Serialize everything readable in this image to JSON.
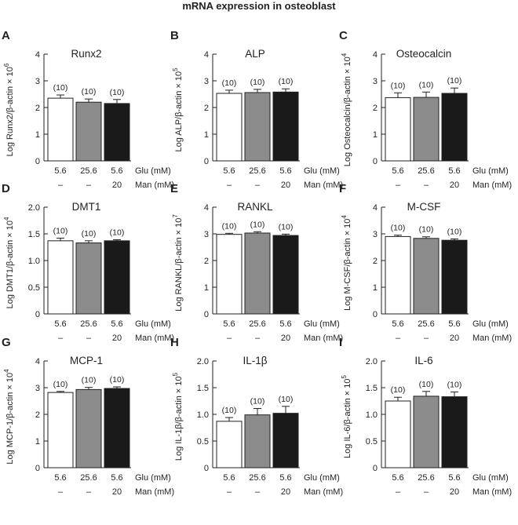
{
  "figure_title": "mRNA expression in osteoblast",
  "conditions": {
    "glu_values": [
      "5.6",
      "25.6",
      "5.6"
    ],
    "glu_unit": "Glu (mM)",
    "man_values": [
      "–",
      "–",
      "20"
    ],
    "man_unit": "Man (mM)"
  },
  "colors": {
    "bar_fills": [
      "#ffffff",
      "#8c8c8c",
      "#1a1a1a"
    ],
    "stroke": "#231f20"
  },
  "chart_data": [
    {
      "type": "bar",
      "letter": "A",
      "title": "Runx2",
      "ylabel": "Log Runx2/β-actin × 10",
      "ylabel_exp": "6",
      "ylim": [
        0,
        4
      ],
      "yticks": [
        "0",
        "1",
        "2",
        "3",
        "4"
      ],
      "categories": [
        "5.6 Glu",
        "25.6 Glu",
        "5.6 Glu + 20 Man"
      ],
      "values": [
        2.35,
        2.2,
        2.15
      ],
      "errors": [
        0.12,
        0.12,
        0.15
      ],
      "n": [
        "(10)",
        "(10)",
        "(10)"
      ]
    },
    {
      "type": "bar",
      "letter": "B",
      "title": "ALP",
      "ylabel": "Log ALP/β-actin × 10",
      "ylabel_exp": "5",
      "ylim": [
        0,
        4
      ],
      "yticks": [
        "0",
        "1",
        "2",
        "3",
        "4"
      ],
      "categories": [
        "5.6 Glu",
        "25.6 Glu",
        "5.6 Glu + 20 Man"
      ],
      "values": [
        2.53,
        2.56,
        2.58
      ],
      "errors": [
        0.12,
        0.12,
        0.12
      ],
      "n": [
        "(10)",
        "(10)",
        "(10)"
      ]
    },
    {
      "type": "bar",
      "letter": "C",
      "title": "Osteocalcin",
      "ylabel": "Log Osteocalcin/β-actin × 10",
      "ylabel_exp": "4",
      "ylim": [
        0,
        4
      ],
      "yticks": [
        "0",
        "1",
        "2",
        "3",
        "4"
      ],
      "categories": [
        "5.6 Glu",
        "25.6 Glu",
        "5.6 Glu + 20 Man"
      ],
      "values": [
        2.37,
        2.38,
        2.53
      ],
      "errors": [
        0.18,
        0.2,
        0.2
      ],
      "n": [
        "(10)",
        "(10)",
        "(10)"
      ]
    },
    {
      "type": "bar",
      "letter": "D",
      "title": "DMT1",
      "ylabel": "Log DMT1/β-actin × 10",
      "ylabel_exp": "4",
      "ylim": [
        0,
        2
      ],
      "yticks": [
        "0",
        "0.5",
        "1.0",
        "1.5",
        "2.0"
      ],
      "categories": [
        "5.6 Glu",
        "25.6 Glu",
        "5.6 Glu + 20 Man"
      ],
      "values": [
        1.37,
        1.33,
        1.37
      ],
      "errors": [
        0.05,
        0.04,
        0.02
      ],
      "n": [
        "(10)",
        "(10)",
        "(10)"
      ]
    },
    {
      "type": "bar",
      "letter": "E",
      "title": "RANKL",
      "ylabel": "Log RANKL/β-actin × 10",
      "ylabel_exp": "7",
      "ylim": [
        0,
        4
      ],
      "yticks": [
        "0",
        "1",
        "2",
        "3",
        "4"
      ],
      "categories": [
        "5.6 Glu",
        "25.6 Glu",
        "5.6 Glu + 20 Man"
      ],
      "values": [
        2.98,
        3.03,
        2.94
      ],
      "errors": [
        0.04,
        0.05,
        0.05
      ],
      "n": [
        "(10)",
        "(10)",
        "(10)"
      ]
    },
    {
      "type": "bar",
      "letter": "F",
      "title": "M-CSF",
      "ylabel": "Log M-CSF/β-actin × 10",
      "ylabel_exp": "4",
      "ylim": [
        0,
        4
      ],
      "yticks": [
        "0",
        "1",
        "2",
        "3",
        "4"
      ],
      "categories": [
        "5.6 Glu",
        "25.6 Glu",
        "5.6 Glu + 20 Man"
      ],
      "values": [
        2.9,
        2.83,
        2.76
      ],
      "errors": [
        0.05,
        0.06,
        0.05
      ],
      "n": [
        "(10)",
        "(10)",
        "(10)"
      ]
    },
    {
      "type": "bar",
      "letter": "G",
      "title": "MCP-1",
      "ylabel": "Log MCP-1/β-actin × 10",
      "ylabel_exp": "4",
      "ylim": [
        0,
        4
      ],
      "yticks": [
        "0",
        "1",
        "2",
        "3",
        "4"
      ],
      "categories": [
        "5.6 Glu",
        "25.6 Glu",
        "5.6 Glu + 20 Man"
      ],
      "values": [
        2.82,
        2.93,
        2.97
      ],
      "errors": [
        0.04,
        0.08,
        0.06
      ],
      "n": [
        "(10)",
        "(10)",
        "(10)"
      ]
    },
    {
      "type": "bar",
      "letter": "H",
      "title": "IL-1β",
      "ylabel": "Log IL-1β/β-actin × 10",
      "ylabel_exp": "5",
      "ylim": [
        0,
        2
      ],
      "yticks": [
        "0",
        "0.5",
        "1.0",
        "1.5",
        "2.0"
      ],
      "categories": [
        "5.6 Glu",
        "25.6 Glu",
        "5.6 Glu + 20 Man"
      ],
      "values": [
        0.87,
        0.99,
        1.02
      ],
      "errors": [
        0.07,
        0.12,
        0.13
      ],
      "n": [
        "(10)",
        "(10)",
        "(10)"
      ]
    },
    {
      "type": "bar",
      "letter": "I",
      "title": "IL-6",
      "ylabel": "Log IL-6/β-actin × 10",
      "ylabel_exp": "5",
      "ylim": [
        0,
        2
      ],
      "yticks": [
        "0",
        "0.5",
        "1.0",
        "1.5",
        "2.0"
      ],
      "categories": [
        "5.6 Glu",
        "25.6 Glu",
        "5.6 Glu + 20 Man"
      ],
      "values": [
        1.25,
        1.34,
        1.33
      ],
      "errors": [
        0.07,
        0.09,
        0.09
      ],
      "n": [
        "(10)",
        "(10)",
        "(10)"
      ]
    }
  ]
}
